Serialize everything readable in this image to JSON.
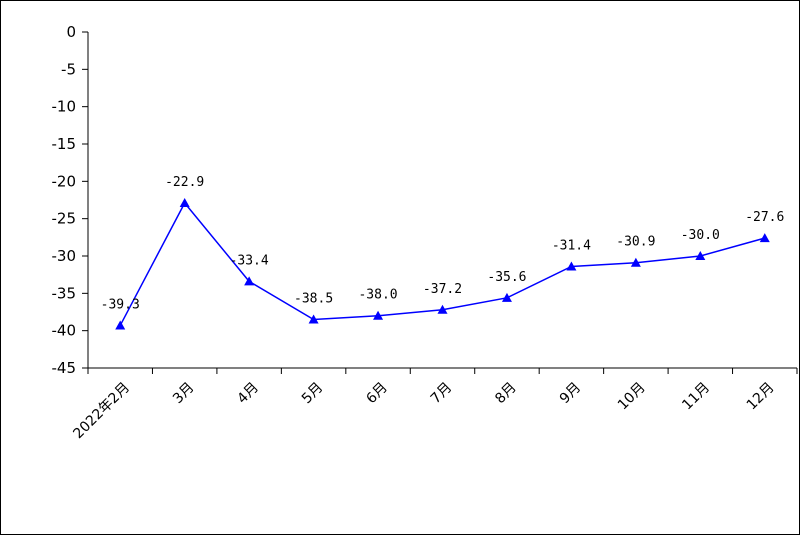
{
  "chart_data": {
    "type": "line",
    "title": "",
    "xlabel": "",
    "ylabel": "",
    "categories": [
      "2022年2月",
      "3月",
      "4月",
      "5月",
      "6月",
      "7月",
      "8月",
      "9月",
      "10月",
      "11月",
      "12月"
    ],
    "series": [
      {
        "name": "",
        "values": [
          -39.3,
          -22.9,
          -33.4,
          -38.5,
          -38.0,
          -37.2,
          -35.6,
          -31.4,
          -30.9,
          -30.0,
          -27.6
        ],
        "labels": [
          "-39.3",
          "-22.9",
          "-33.4",
          "-38.5",
          "-38.0",
          "-37.2",
          "-35.6",
          "-31.4",
          "-30.9",
          "-30.0",
          "-27.6"
        ],
        "color": "#0000ff",
        "marker": "triangle"
      }
    ],
    "yticks": [
      0,
      -5,
      -10,
      -15,
      -20,
      -25,
      -30,
      -35,
      -40,
      -45
    ],
    "ylim": [
      -45,
      0
    ],
    "grid": false,
    "legend": "none"
  }
}
